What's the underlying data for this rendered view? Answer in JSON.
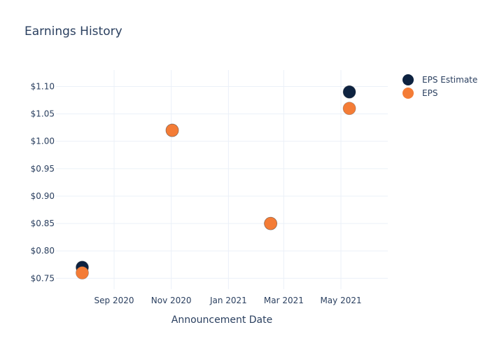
{
  "chart_data": {
    "type": "scatter",
    "title": "Earnings History",
    "xlabel": "Announcement Date",
    "ylabel": "",
    "x_axis_type": "date",
    "xlim": [
      "2020-07-01",
      "2021-06-20"
    ],
    "ylim": [
      0.73,
      1.13
    ],
    "x_ticks": [
      {
        "date": "2020-09-01",
        "label": "Sep 2020"
      },
      {
        "date": "2020-11-01",
        "label": "Nov 2020"
      },
      {
        "date": "2021-01-01",
        "label": "Jan 2021"
      },
      {
        "date": "2021-03-01",
        "label": "Mar 2021"
      },
      {
        "date": "2021-05-01",
        "label": "May 2021"
      }
    ],
    "y_ticks": [
      {
        "value": 0.75,
        "label": "$0.75"
      },
      {
        "value": 0.8,
        "label": "$0.80"
      },
      {
        "value": 0.85,
        "label": "$0.85"
      },
      {
        "value": 0.9,
        "label": "$0.90"
      },
      {
        "value": 0.95,
        "label": "$0.95"
      },
      {
        "value": 1.0,
        "label": "$1.00"
      },
      {
        "value": 1.05,
        "label": "$1.05"
      },
      {
        "value": 1.1,
        "label": "$1.10"
      }
    ],
    "grid": true,
    "legend_position": "top-right",
    "series": [
      {
        "name": "EPS Estimate",
        "color": "#0d2240",
        "points": [
          {
            "x": "2020-07-29",
            "y": 0.77
          },
          {
            "x": "2020-11-02",
            "y": 1.02
          },
          {
            "x": "2021-02-15",
            "y": 0.85
          },
          {
            "x": "2021-05-10",
            "y": 1.09
          }
        ]
      },
      {
        "name": "EPS",
        "color": "#f47c36",
        "points": [
          {
            "x": "2020-07-29",
            "y": 0.76
          },
          {
            "x": "2020-11-02",
            "y": 1.02
          },
          {
            "x": "2021-02-15",
            "y": 0.85
          },
          {
            "x": "2021-05-10",
            "y": 1.06
          }
        ]
      }
    ]
  }
}
